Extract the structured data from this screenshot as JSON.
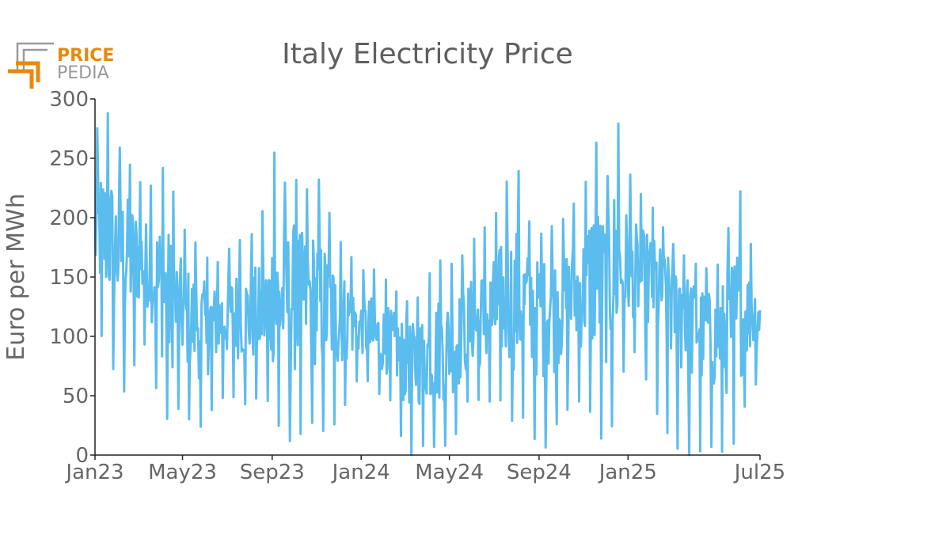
{
  "logo": {
    "word_top": "PRICE",
    "word_bottom": "PEDIA",
    "accent_color": "#e8890c",
    "gray_color": "#9a9a9a"
  },
  "chart_data": {
    "type": "line",
    "title": "Italy Electricity Price",
    "ylabel": "Euro per MWh",
    "xlabel": "",
    "ylim": [
      0,
      300
    ],
    "yticks": [
      0,
      50,
      100,
      150,
      200,
      250,
      300
    ],
    "xlim": [
      "2023-01-01",
      "2025-07-01"
    ],
    "xticks": [
      {
        "date": "2023-01-01",
        "label": "Jan23"
      },
      {
        "date": "2023-05-01",
        "label": "May23"
      },
      {
        "date": "2023-09-01",
        "label": "Sep23"
      },
      {
        "date": "2024-01-01",
        "label": "Jan24"
      },
      {
        "date": "2024-05-01",
        "label": "May24"
      },
      {
        "date": "2024-09-01",
        "label": "Sep24"
      },
      {
        "date": "2025-01-01",
        "label": "Jan25"
      },
      {
        "date": "2025-07-01",
        "label": "Jul25"
      }
    ],
    "grid": false,
    "legend": "none",
    "series_color": "#5bbcee",
    "series": [
      {
        "x": [
          "2023-01-01",
          "2023-01-15",
          "2023-02-01",
          "2023-02-15",
          "2023-03-01",
          "2023-03-15",
          "2023-04-01",
          "2023-04-15",
          "2023-05-01",
          "2023-05-15",
          "2023-06-01",
          "2023-06-15",
          "2023-07-01",
          "2023-07-15",
          "2023-08-01",
          "2023-08-15",
          "2023-09-01",
          "2023-09-15",
          "2023-10-01",
          "2023-10-15",
          "2023-11-01",
          "2023-11-15",
          "2023-12-01",
          "2023-12-15",
          "2024-01-01",
          "2024-01-15",
          "2024-02-01",
          "2024-02-15",
          "2024-03-01",
          "2024-03-15",
          "2024-04-01",
          "2024-04-15",
          "2024-05-01",
          "2024-05-15",
          "2024-06-01",
          "2024-06-15",
          "2024-07-01",
          "2024-07-15",
          "2024-08-01",
          "2024-08-15",
          "2024-09-01",
          "2024-09-15",
          "2024-10-01",
          "2024-10-15",
          "2024-11-01",
          "2024-11-15",
          "2024-12-01",
          "2024-12-15",
          "2025-01-01",
          "2025-01-15",
          "2025-02-01",
          "2025-02-15",
          "2025-03-01",
          "2025-03-15",
          "2025-04-01",
          "2025-04-15",
          "2025-05-01",
          "2025-05-15",
          "2025-06-01",
          "2025-06-15",
          "2025-07-01"
        ],
        "mid": [
          185,
          180,
          175,
          172,
          168,
          158,
          140,
          125,
          118,
          115,
          112,
          115,
          118,
          122,
          118,
          115,
          120,
          130,
          138,
          135,
          128,
          124,
          120,
          118,
          105,
          98,
          95,
          92,
          88,
          85,
          86,
          90,
          95,
          100,
          105,
          112,
          118,
          125,
          128,
          130,
          132,
          128,
          130,
          135,
          142,
          150,
          158,
          155,
          152,
          148,
          150,
          145,
          140,
          135,
          120,
          112,
          105,
          108,
          112,
          118,
          122
        ],
        "high": [
          270,
          295,
          262,
          248,
          232,
          222,
          245,
          230,
          192,
          182,
          168,
          160,
          172,
          180,
          185,
          190,
          262,
          228,
          235,
          220,
          238,
          210,
          182,
          170,
          155,
          158,
          150,
          140,
          130,
          128,
          150,
          165,
          160,
          165,
          180,
          190,
          198,
          225,
          250,
          200,
          185,
          192,
          196,
          210,
          218,
          275,
          220,
          290,
          240,
          222,
          212,
          195,
          180,
          170,
          162,
          158,
          155,
          180,
          232,
          186,
          148
        ],
        "low": [
          110,
          95,
          60,
          50,
          90,
          95,
          35,
          28,
          45,
          22,
          25,
          45,
          50,
          48,
          40,
          52,
          42,
          15,
          10,
          22,
          30,
          15,
          32,
          48,
          70,
          58,
          48,
          45,
          0,
          0,
          12,
          4,
          10,
          22,
          58,
          40,
          48,
          45,
          20,
          38,
          0,
          10,
          35,
          40,
          48,
          30,
          5,
          35,
          90,
          85,
          52,
          25,
          15,
          0,
          0,
          5,
          8,
          0,
          15,
          55,
          62
        ]
      }
    ]
  }
}
